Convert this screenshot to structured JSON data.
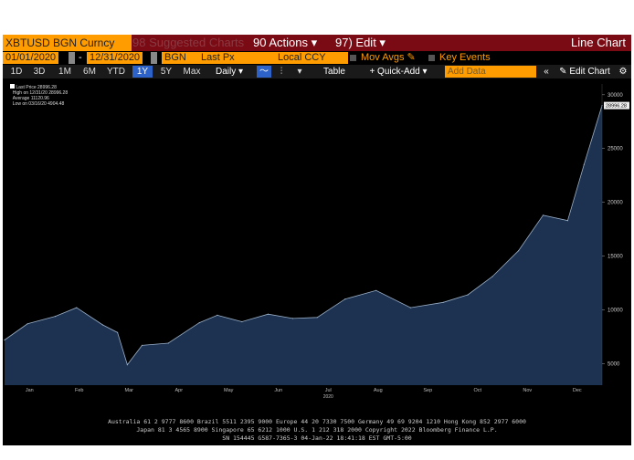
{
  "toolbar1": {
    "security": "XBTUSD BGN Curncy",
    "suggested_charts": "98 Suggested Charts",
    "actions": "90 Actions ▾",
    "edit": "97) Edit ▾",
    "chart_type": "Line Chart"
  },
  "toolbar2": {
    "start_date": "01/01/2020",
    "dash": "-",
    "end_date": "12/31/2020",
    "source": "BGN",
    "field": "Last Px",
    "currency": "Local CCY",
    "mov_avgs": "Mov Avgs",
    "key_events": "Key Events"
  },
  "toolbar3": {
    "ranges": [
      "1D",
      "3D",
      "1M",
      "6M",
      "YTD",
      "1Y",
      "5Y",
      "Max"
    ],
    "selected_range": "1Y",
    "periodicity": "Daily ▾",
    "table": "Table",
    "quick_add": "+ Quick-Add ▾",
    "add_data_placeholder": "Add Data",
    "edit_chart": "Edit Chart"
  },
  "legend": {
    "last_price_label": "Last Price",
    "last_price": "28996.28",
    "high_label": "High on 12/31/20",
    "high": "28996.28",
    "average_label": "Average",
    "average": "11120.96",
    "low_label": "Low on 03/16/20",
    "low": "4904.48"
  },
  "colors": {
    "area": "#1d3150",
    "line": "#9ab0c8",
    "accent_bar": "#7a0a14",
    "orange": "#ff9c00"
  },
  "chart_data": {
    "type": "area",
    "ylim": [
      3000,
      31000
    ],
    "yticks": [
      5000,
      10000,
      15000,
      20000,
      25000,
      30000
    ],
    "months": [
      "Jan",
      "Feb",
      "Mar",
      "Apr",
      "May",
      "Jun",
      "Jul",
      "Aug",
      "Sep",
      "Oct",
      "Nov",
      "Dec"
    ],
    "year_label": "2020",
    "last_value_label": "28996.28",
    "x": [
      "2020-01-01",
      "2020-01-15",
      "2020-02-01",
      "2020-02-14",
      "2020-03-01",
      "2020-03-10",
      "2020-03-16",
      "2020-03-25",
      "2020-04-10",
      "2020-04-29",
      "2020-05-10",
      "2020-05-25",
      "2020-06-10",
      "2020-06-25",
      "2020-07-10",
      "2020-07-27",
      "2020-08-15",
      "2020-09-05",
      "2020-09-25",
      "2020-10-10",
      "2020-10-25",
      "2020-11-10",
      "2020-11-25",
      "2020-12-10",
      "2020-12-20",
      "2020-12-31"
    ],
    "y": [
      7200,
      8700,
      9400,
      10200,
      8600,
      7900,
      4900,
      6700,
      6900,
      8800,
      9500,
      8900,
      9600,
      9200,
      9300,
      11000,
      11800,
      10200,
      10700,
      11400,
      13100,
      15500,
      18800,
      18300,
      23500,
      28996
    ]
  },
  "footer": {
    "line1": "Australia 61 2 9777 8600 Brazil 5511 2395 9000 Europe 44 20 7330 7500 Germany 49 69 9204 1210 Hong Kong 852 2977 6000",
    "line2": "Japan 81 3 4565 8900 Singapore 65 6212 1000 U.S. 1 212 318 2000 Copyright 2022 Bloomberg Finance L.P.",
    "line3": "SN 154445 G587-7365-3 04-Jan-22 18:41:18 EST GMT-5:00"
  }
}
